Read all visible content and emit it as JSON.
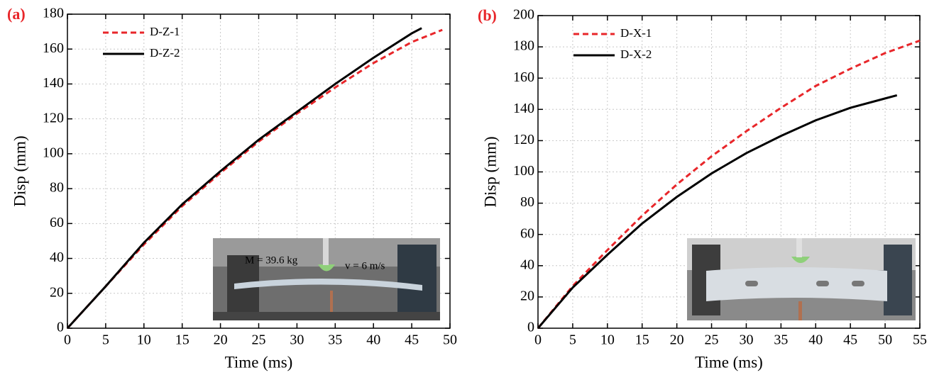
{
  "chart_data": [
    {
      "type": "line",
      "panel_label": "(a)",
      "x_label": "Time (ms)",
      "y_label": "Disp (mm)",
      "xlim": [
        0,
        50
      ],
      "ylim": [
        0,
        180
      ],
      "xticks": [
        0,
        5,
        10,
        15,
        20,
        25,
        30,
        35,
        40,
        45,
        50
      ],
      "yticks": [
        0,
        20,
        40,
        60,
        80,
        100,
        120,
        140,
        160,
        180
      ],
      "grid": true,
      "legend": "upper left",
      "annotations": [
        "M = 39.6 kg",
        "v = 6 m/s"
      ],
      "series": [
        {
          "name": "D-Z-1",
          "color": "#e8262a",
          "line_style": "dashed",
          "x": [
            0,
            5,
            10,
            15,
            20,
            25,
            30,
            35,
            40,
            45,
            49
          ],
          "values": [
            0,
            24,
            48,
            70,
            89,
            107,
            123,
            138,
            152,
            164,
            171
          ]
        },
        {
          "name": "D-Z-2",
          "color": "#000000",
          "line_style": "solid",
          "x": [
            0,
            5,
            10,
            15,
            20,
            25,
            30,
            35,
            40,
            45,
            46.3
          ],
          "values": [
            0,
            24,
            49,
            71,
            90,
            108,
            124,
            140,
            155,
            169,
            172
          ]
        }
      ]
    },
    {
      "type": "line",
      "panel_label": "(b)",
      "x_label": "Time (ms)",
      "y_label": "Disp (mm)",
      "xlim": [
        0,
        55
      ],
      "ylim": [
        0,
        200
      ],
      "xticks": [
        0,
        5,
        10,
        15,
        20,
        25,
        30,
        35,
        40,
        45,
        50,
        55
      ],
      "yticks": [
        0,
        20,
        40,
        60,
        80,
        100,
        120,
        140,
        160,
        180,
        200
      ],
      "grid": true,
      "legend": "upper left",
      "series": [
        {
          "name": "D-X-1",
          "color": "#e8262a",
          "line_style": "dashed",
          "x": [
            0,
            5,
            10,
            15,
            20,
            25,
            30,
            35,
            40,
            45,
            50,
            55
          ],
          "values": [
            0,
            27,
            50,
            72,
            92,
            110,
            126,
            141,
            155,
            166,
            176,
            184
          ]
        },
        {
          "name": "D-X-2",
          "color": "#000000",
          "line_style": "solid",
          "x": [
            0,
            5,
            10,
            15,
            20,
            25,
            30,
            35,
            40,
            45,
            50,
            51.7
          ],
          "values": [
            0,
            26,
            47,
            67,
            84,
            99,
            112,
            123,
            133,
            141,
            147,
            149
          ]
        }
      ]
    }
  ]
}
